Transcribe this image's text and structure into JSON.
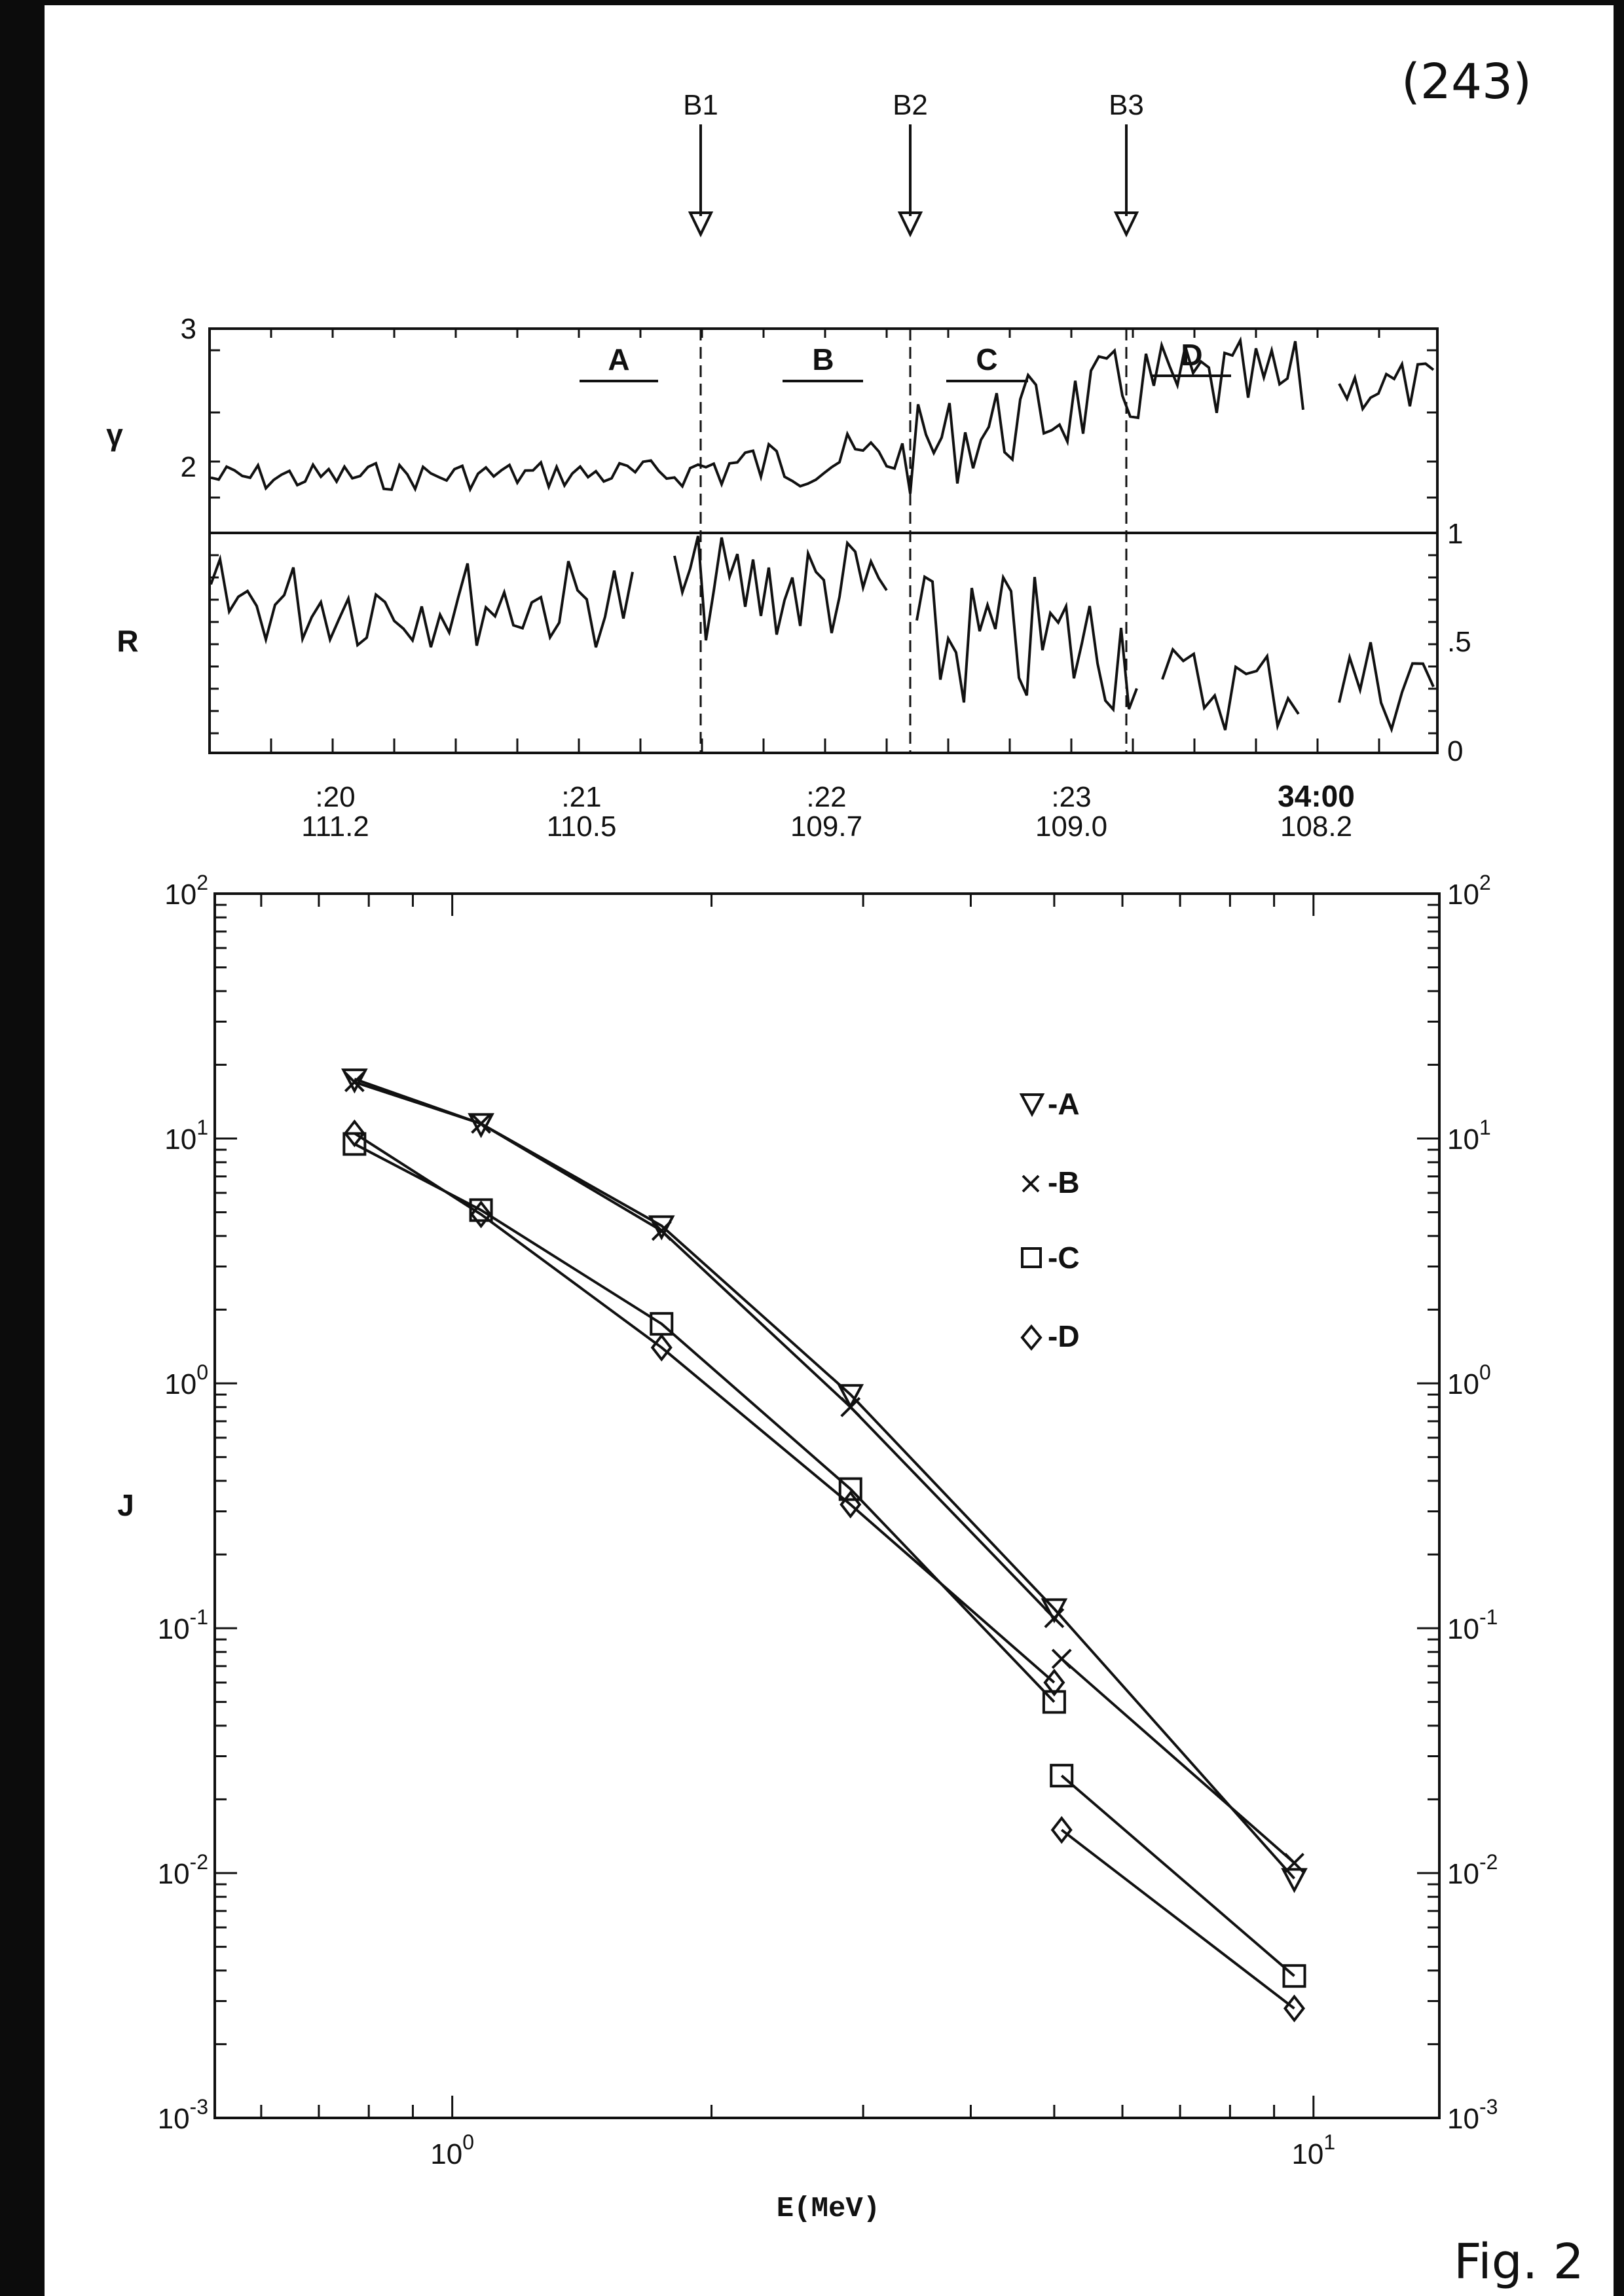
{
  "page_note": "(243)",
  "fig_label": "Fig. 2",
  "boundaries": [
    "B1",
    "B2",
    "B3"
  ],
  "intervals": [
    "A",
    "B",
    "C",
    "D"
  ],
  "time_axis": {
    "times": [
      ":20",
      ":21",
      ":22",
      ":23",
      "34:00"
    ],
    "values": [
      "111.2",
      "110.5",
      "109.7",
      "109.0",
      "108.2"
    ]
  },
  "chart_data": [
    {
      "type": "line",
      "ylabel": "γ",
      "ytick_labels": [
        "3",
        "2"
      ],
      "ylim": [
        1.5,
        3
      ],
      "series_description": "gamma time series with gap near D"
    },
    {
      "type": "line",
      "ylabel": "R",
      "ytick_labels_right": [
        "1",
        ".5",
        "0"
      ],
      "ylim": [
        0,
        1
      ]
    },
    {
      "type": "line",
      "xlabel": "E(MeV)",
      "ylabel": "J",
      "xscale": "log",
      "yscale": "log",
      "xlim": [
        0.53,
        14
      ],
      "ylim": [
        0.001,
        100
      ],
      "x_tick_labels": [
        {
          "base": "10",
          "exp": "0",
          "value": 1
        },
        {
          "base": "10",
          "exp": "1",
          "value": 10
        }
      ],
      "y_tick_labels": [
        {
          "base": "10",
          "exp": "2",
          "value": 100
        },
        {
          "base": "10",
          "exp": "1",
          "value": 10
        },
        {
          "base": "10",
          "exp": "0",
          "value": 1
        },
        {
          "base": "10",
          "exp": "-1",
          "value": 0.1
        },
        {
          "base": "10",
          "exp": "-2",
          "value": 0.01
        },
        {
          "base": "10",
          "exp": "-3",
          "value": 0.001
        }
      ],
      "legend_position": "upper-right",
      "series": [
        {
          "name": "A",
          "legend": "-A",
          "marker": "triangle-down",
          "x": [
            0.77,
            1.08,
            1.75,
            2.9,
            5.0,
            9.5
          ],
          "y": [
            17.5,
            11.5,
            4.4,
            0.9,
            0.12,
            0.0095
          ]
        },
        {
          "name": "B",
          "legend": "-B",
          "marker": "x",
          "x": [
            0.77,
            1.08,
            1.75,
            2.9,
            5.0,
            5.1,
            9.5
          ],
          "y": [
            17.0,
            11.5,
            4.2,
            0.8,
            0.11,
            0.075,
            0.011
          ]
        },
        {
          "name": "C",
          "legend": "-C",
          "marker": "square",
          "x": [
            0.77,
            1.08,
            1.75,
            2.9,
            5.0,
            5.1,
            9.5
          ],
          "y": [
            9.5,
            5.1,
            1.75,
            0.37,
            0.05,
            0.025,
            0.0038
          ]
        },
        {
          "name": "D",
          "legend": "-D",
          "marker": "diamond",
          "x": [
            0.77,
            1.08,
            1.75,
            2.9,
            5.0,
            5.1,
            9.5
          ],
          "y": [
            10.5,
            4.9,
            1.4,
            0.32,
            0.06,
            0.015,
            0.0028
          ]
        }
      ]
    }
  ]
}
